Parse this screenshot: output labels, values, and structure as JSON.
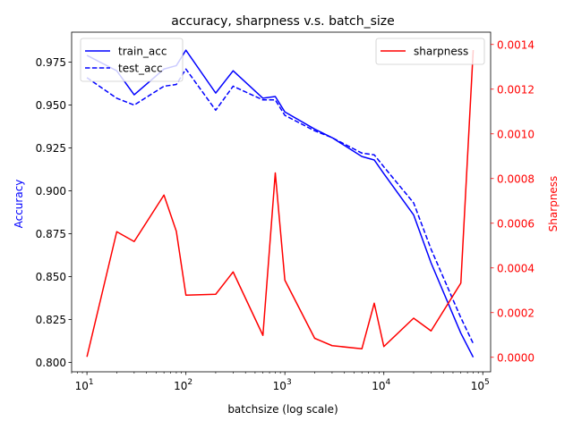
{
  "chart_data": {
    "type": "line",
    "title": "accuracy, sharpness v.s. batch_size",
    "xlabel": "batchsize (log scale)",
    "ylabel_left": "Accuracy",
    "ylabel_right": "Sharpness",
    "xscale": "log",
    "xlim": [
      7,
      120000
    ],
    "ylim_left": [
      0.7945,
      0.9925
    ],
    "ylim_right": [
      -6.5e-05,
      0.001455
    ],
    "x_ticks": [
      {
        "value": 10,
        "base": "10",
        "exp": "1"
      },
      {
        "value": 100,
        "base": "10",
        "exp": "2"
      },
      {
        "value": 1000,
        "base": "10",
        "exp": "3"
      },
      {
        "value": 10000,
        "base": "10",
        "exp": "4"
      },
      {
        "value": 100000,
        "base": "10",
        "exp": "5"
      }
    ],
    "y_ticks_left": [
      "0.800",
      "0.825",
      "0.850",
      "0.875",
      "0.900",
      "0.925",
      "0.950",
      "0.975"
    ],
    "y_ticks_right": [
      "0.0000",
      "0.0002",
      "0.0004",
      "0.0006",
      "0.0008",
      "0.0010",
      "0.0012",
      "0.0014"
    ],
    "legend_left_position": "upper-left",
    "legend_right_position": "upper-right",
    "grid": false,
    "x": [
      10,
      20,
      30,
      60,
      80,
      100,
      200,
      300,
      600,
      800,
      1000,
      2000,
      3000,
      6000,
      8000,
      10000,
      20000,
      30000,
      60000,
      80000
    ],
    "series": [
      {
        "name": "train_acc",
        "axis": "left",
        "color": "#0000ff",
        "style": "solid",
        "values": [
          0.979,
          0.97,
          0.956,
          0.971,
          0.973,
          0.982,
          0.957,
          0.97,
          0.954,
          0.955,
          0.946,
          0.936,
          0.931,
          0.92,
          0.918,
          0.91,
          0.886,
          0.858,
          0.817,
          0.803
        ]
      },
      {
        "name": "test_acc",
        "axis": "left",
        "color": "#0000ff",
        "style": "dashed",
        "values": [
          0.966,
          0.954,
          0.95,
          0.961,
          0.962,
          0.971,
          0.947,
          0.961,
          0.953,
          0.953,
          0.944,
          0.935,
          0.931,
          0.922,
          0.921,
          0.914,
          0.893,
          0.866,
          0.826,
          0.811
        ]
      },
      {
        "name": "sharpness",
        "axis": "right",
        "color": "#ff0000",
        "style": "solid",
        "values": [
          2e-06,
          0.000562,
          0.000518,
          0.000726,
          0.000564,
          0.000278,
          0.000282,
          0.000382,
          9.8e-05,
          0.000825,
          0.000345,
          8.5e-05,
          5.2e-05,
          3.8e-05,
          0.000242,
          4.8e-05,
          0.000175,
          0.000118,
          0.000332,
          0.001375
        ]
      }
    ]
  }
}
